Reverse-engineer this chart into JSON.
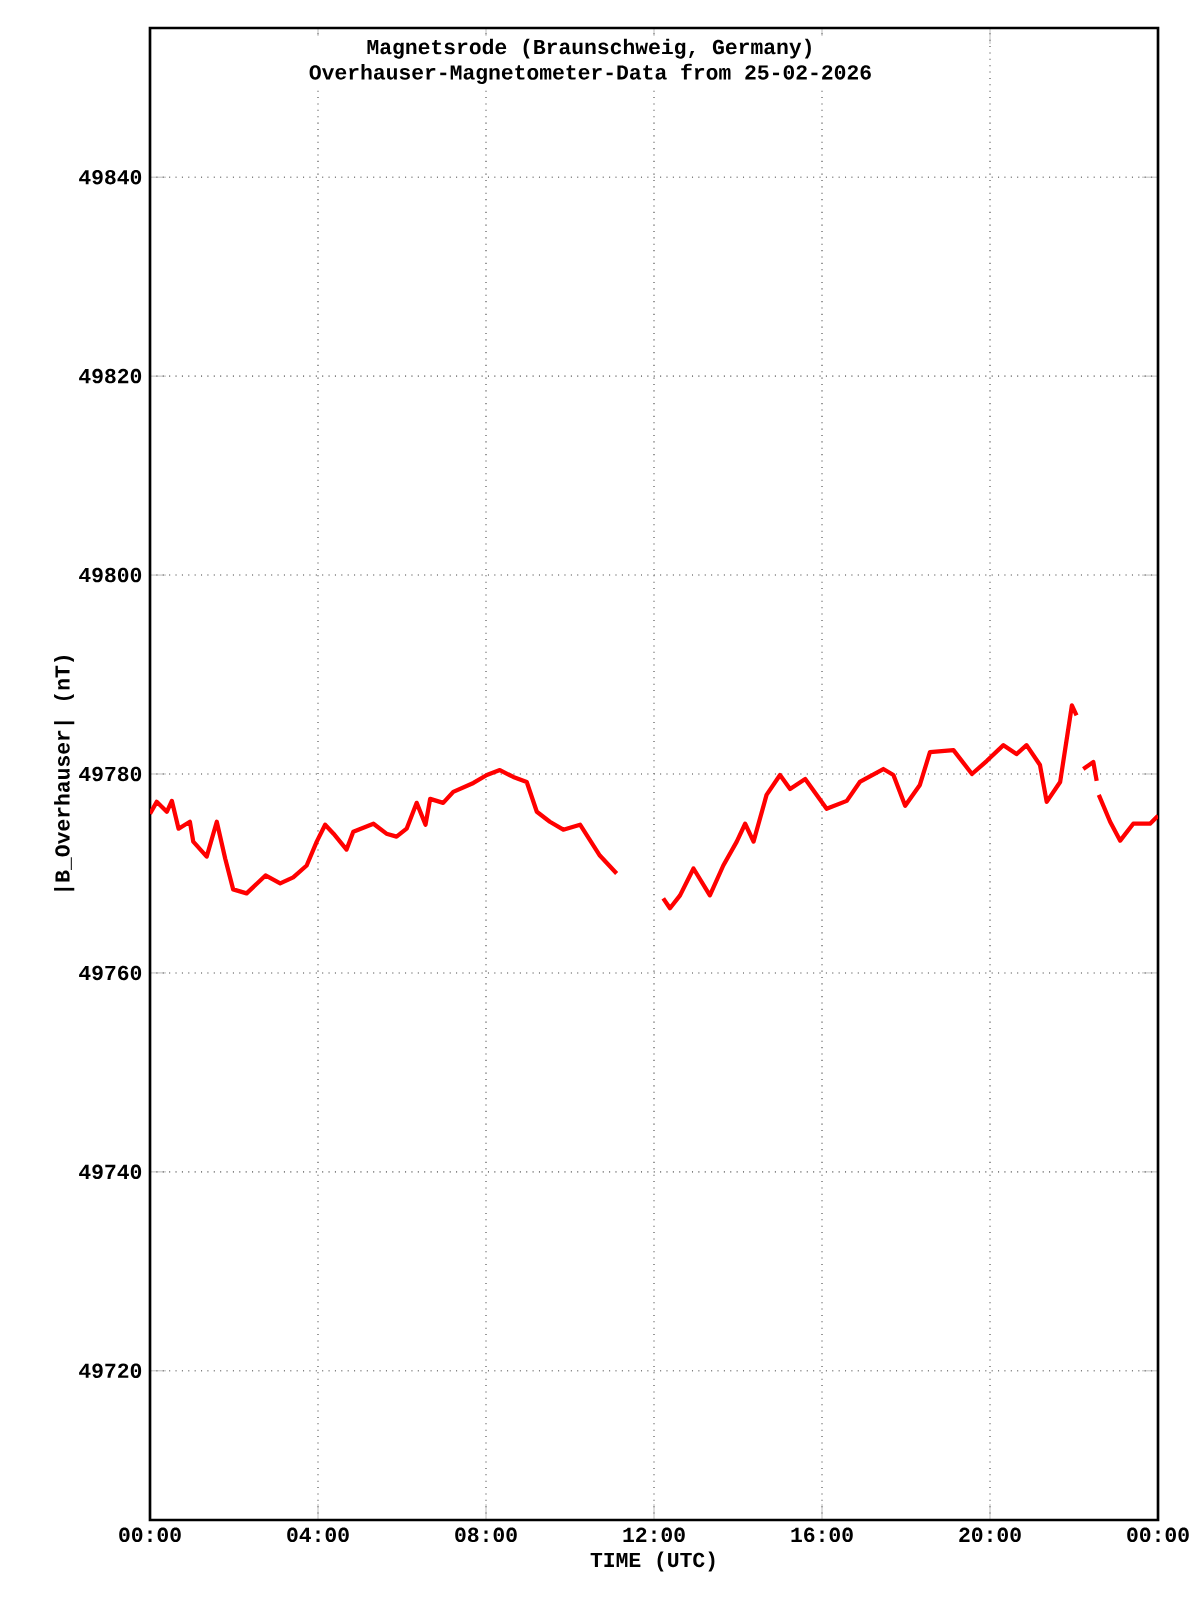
{
  "chart_data": {
    "type": "line",
    "title": "Magnetsrode (Braunschweig, Germany)",
    "subtitle": "Overhauser-Magnetometer-Data from 25-02-2026",
    "xlabel": "TIME (UTC)",
    "ylabel": "|B_Overhauser| (nT)",
    "xlim": [
      0,
      24
    ],
    "ylim": [
      49705,
      49855
    ],
    "xticks": [
      {
        "value": 0,
        "label": "00:00"
      },
      {
        "value": 4,
        "label": "04:00"
      },
      {
        "value": 8,
        "label": "08:00"
      },
      {
        "value": 12,
        "label": "12:00"
      },
      {
        "value": 16,
        "label": "16:00"
      },
      {
        "value": 20,
        "label": "20:00"
      },
      {
        "value": 24,
        "label": "00:00"
      }
    ],
    "yticks": [
      49720,
      49740,
      49760,
      49780,
      49800,
      49820,
      49840
    ],
    "grid": true,
    "marker": "none",
    "line_style": "solid",
    "series": [
      {
        "color": "#ff0000",
        "x": [
          0.0,
          0.16,
          0.4,
          0.52,
          0.68,
          0.95,
          1.03,
          1.35,
          1.59,
          1.79,
          1.98,
          2.3,
          2.75,
          3.1,
          3.41,
          3.73,
          3.97,
          4.17,
          4.37,
          4.68,
          4.84,
          5.32,
          5.63,
          5.87,
          6.11,
          6.35,
          6.56,
          6.67,
          6.98,
          7.22,
          7.7,
          8.02,
          8.33,
          8.65,
          8.97,
          9.21,
          9.52,
          9.84,
          10.24,
          10.71,
          11.11,
          11.6,
          12.22,
          12.38,
          12.62,
          12.94,
          13.33,
          13.65,
          13.97,
          14.17,
          14.37,
          14.68,
          15.0,
          15.24,
          15.6,
          16.11,
          16.59,
          16.9,
          17.46,
          17.7,
          17.98,
          18.33,
          18.57,
          19.13,
          19.57,
          19.92,
          20.32,
          20.63,
          20.87,
          21.19,
          21.35,
          21.67,
          21.95,
          22.06,
          22.14,
          22.22,
          22.46,
          22.54,
          22.57,
          22.59,
          22.86,
          23.1,
          23.41,
          23.81,
          24.0
        ],
        "values": [
          49776.0,
          49777.2,
          49776.2,
          49777.3,
          49774.5,
          49775.2,
          49773.2,
          49771.7,
          49775.2,
          49771.5,
          49768.4,
          49768.0,
          49769.8,
          49769.0,
          49769.6,
          49770.8,
          49773.2,
          49774.9,
          49774.0,
          49772.4,
          49774.2,
          49775.0,
          49774.0,
          49773.7,
          49774.5,
          49777.1,
          49774.9,
          49777.5,
          49777.1,
          49778.2,
          49779.1,
          49779.9,
          49780.4,
          49779.7,
          49779.2,
          49776.2,
          49775.2,
          49774.4,
          49774.9,
          49771.8,
          49770.0,
          null,
          49767.5,
          49766.5,
          49767.8,
          49770.5,
          49767.8,
          49770.8,
          49773.2,
          49775.0,
          49773.2,
          49777.9,
          49779.9,
          49778.5,
          49779.5,
          49776.5,
          49777.3,
          49779.2,
          49780.5,
          49779.9,
          49776.8,
          49778.9,
          49782.2,
          49782.4,
          49780.0,
          49781.3,
          49782.9,
          49782.0,
          49782.9,
          49780.9,
          49777.2,
          49779.2,
          49786.9,
          49785.9,
          null,
          49780.5,
          49781.2,
          49779.3,
          null,
          49777.9,
          49775.2,
          49773.3,
          49775.0,
          49775.0,
          49775.8
        ]
      }
    ]
  }
}
